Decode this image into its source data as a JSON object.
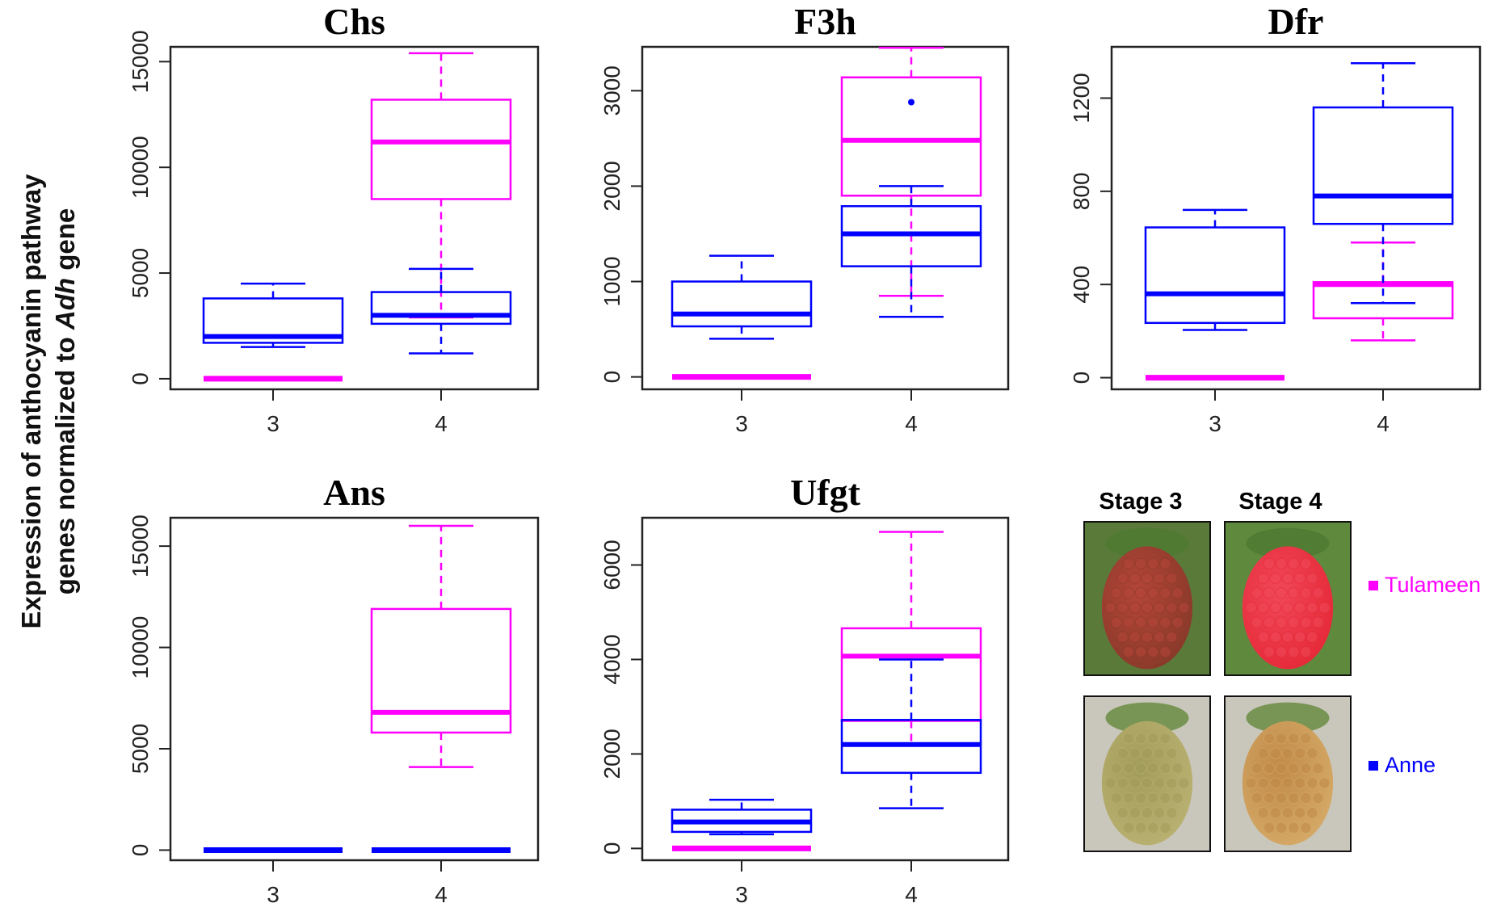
{
  "figure": {
    "ylabel_line1": "Expression of anthocyanin pathway",
    "ylabel_line2_pre": "genes normalized to ",
    "ylabel_line2_gene": "Adh",
    "ylabel_line2_post": " gene",
    "stage3_label": "Stage 3",
    "stage4_label": "Stage 4"
  },
  "legend": [
    {
      "name": "Tulameen",
      "color": "#ff00ff"
    },
    {
      "name": "Anne",
      "color": "#0000ff"
    }
  ],
  "photos": [
    {
      "name": "tulameen-stage-3-photo",
      "variety": "Tulameen",
      "stage": "3",
      "colors": [
        "#8a3a2a",
        "#b4453a",
        "#5a7a3a"
      ]
    },
    {
      "name": "tulameen-stage-4-photo",
      "variety": "Tulameen",
      "stage": "4",
      "colors": [
        "#e62a3a",
        "#f04858",
        "#5f8a3e"
      ]
    },
    {
      "name": "anne-stage-3-photo",
      "variety": "Anne",
      "stage": "3",
      "colors": [
        "#b8b070",
        "#a29c5a",
        "#c9c7bb"
      ]
    },
    {
      "name": "anne-stage-4-photo",
      "variety": "Anne",
      "stage": "4",
      "colors": [
        "#d4a866",
        "#c08a48",
        "#c9c7bb"
      ]
    }
  ],
  "chart_data": [
    {
      "type": "box",
      "title": "Chs",
      "categories": [
        "3",
        "4"
      ],
      "ylim": [
        -500,
        15700
      ],
      "yticks": [
        0,
        5000,
        10000,
        15000
      ],
      "series": [
        {
          "name": "Tulameen",
          "color": "#ff00ff",
          "boxes": [
            {
              "category": "3",
              "whislo": 0,
              "q1": 0,
              "med": 0,
              "q3": 0,
              "whishi": 0,
              "outliers": []
            },
            {
              "category": "4",
              "whislo": 2900,
              "q1": 8500,
              "med": 11200,
              "q3": 13200,
              "whishi": 15400,
              "outliers": []
            }
          ]
        },
        {
          "name": "Anne",
          "color": "#0000ff",
          "boxes": [
            {
              "category": "3",
              "whislo": 1500,
              "q1": 1700,
              "med": 2000,
              "q3": 3800,
              "whishi": 4500,
              "outliers": []
            },
            {
              "category": "4",
              "whislo": 1200,
              "q1": 2600,
              "med": 3000,
              "q3": 4100,
              "whishi": 5200,
              "outliers": []
            }
          ]
        }
      ]
    },
    {
      "type": "box",
      "title": "F3h",
      "categories": [
        "3",
        "4"
      ],
      "ylim": [
        -130,
        3460
      ],
      "yticks": [
        0,
        1000,
        2000,
        3000
      ],
      "series": [
        {
          "name": "Tulameen",
          "color": "#ff00ff",
          "boxes": [
            {
              "category": "3",
              "whislo": 0,
              "q1": 0,
              "med": 0,
              "q3": 0,
              "whishi": 0,
              "outliers": []
            },
            {
              "category": "4",
              "whislo": 850,
              "q1": 1900,
              "med": 2480,
              "q3": 3140,
              "whishi": 3450,
              "outliers": []
            }
          ]
        },
        {
          "name": "Anne",
          "color": "#0000ff",
          "boxes": [
            {
              "category": "3",
              "whislo": 400,
              "q1": 530,
              "med": 660,
              "q3": 1000,
              "whishi": 1270,
              "outliers": []
            },
            {
              "category": "4",
              "whislo": 630,
              "q1": 1160,
              "med": 1500,
              "q3": 1790,
              "whishi": 2000,
              "outliers": [
                2880
              ]
            }
          ]
        }
      ]
    },
    {
      "type": "box",
      "title": "Dfr",
      "categories": [
        "3",
        "4"
      ],
      "ylim": [
        -50,
        1420
      ],
      "yticks": [
        0,
        400,
        800,
        1200
      ],
      "series": [
        {
          "name": "Tulameen",
          "color": "#ff00ff",
          "boxes": [
            {
              "category": "3",
              "whislo": 0,
              "q1": 0,
              "med": 0,
              "q3": 0,
              "whishi": 0,
              "outliers": []
            },
            {
              "category": "4",
              "whislo": 160,
              "q1": 255,
              "med": 400,
              "q3": 410,
              "whishi": 580,
              "outliers": []
            }
          ]
        },
        {
          "name": "Anne",
          "color": "#0000ff",
          "boxes": [
            {
              "category": "3",
              "whislo": 205,
              "q1": 235,
              "med": 360,
              "q3": 645,
              "whishi": 720,
              "outliers": []
            },
            {
              "category": "4",
              "whislo": 320,
              "q1": 660,
              "med": 780,
              "q3": 1160,
              "whishi": 1350,
              "outliers": []
            }
          ]
        }
      ]
    },
    {
      "type": "box",
      "title": "Ans",
      "categories": [
        "3",
        "4"
      ],
      "ylim": [
        -500,
        16400
      ],
      "yticks": [
        0,
        5000,
        10000,
        15000
      ],
      "series": [
        {
          "name": "Tulameen",
          "color": "#ff00ff",
          "boxes": [
            {
              "category": "3",
              "whislo": 0,
              "q1": 0,
              "med": 0,
              "q3": 0,
              "whishi": 0,
              "outliers": []
            },
            {
              "category": "4",
              "whislo": 4100,
              "q1": 5800,
              "med": 6800,
              "q3": 11900,
              "whishi": 16000,
              "outliers": []
            }
          ]
        },
        {
          "name": "Anne",
          "color": "#0000ff",
          "boxes": [
            {
              "category": "3",
              "whislo": 0,
              "q1": 0,
              "med": 0,
              "q3": 0,
              "whishi": 0,
              "outliers": []
            },
            {
              "category": "4",
              "whislo": 0,
              "q1": 0,
              "med": 0,
              "q3": 0,
              "whishi": 0,
              "outliers": []
            }
          ]
        }
      ]
    },
    {
      "type": "box",
      "title": "Ufgt",
      "categories": [
        "3",
        "4"
      ],
      "ylim": [
        -250,
        7000
      ],
      "yticks": [
        0,
        2000,
        4000,
        6000
      ],
      "series": [
        {
          "name": "Tulameen",
          "color": "#ff00ff",
          "boxes": [
            {
              "category": "3",
              "whislo": 0,
              "q1": 0,
              "med": 0,
              "q3": 0,
              "whishi": 0,
              "outliers": []
            },
            {
              "category": "4",
              "whislo": 2200,
              "q1": 2700,
              "med": 4070,
              "q3": 4660,
              "whishi": 6700,
              "outliers": []
            }
          ]
        },
        {
          "name": "Anne",
          "color": "#0000ff",
          "boxes": [
            {
              "category": "3",
              "whislo": 300,
              "q1": 350,
              "med": 560,
              "q3": 820,
              "whishi": 1030,
              "outliers": []
            },
            {
              "category": "4",
              "whislo": 850,
              "q1": 1600,
              "med": 2200,
              "q3": 2720,
              "whishi": 4000,
              "outliers": []
            }
          ]
        }
      ]
    }
  ]
}
